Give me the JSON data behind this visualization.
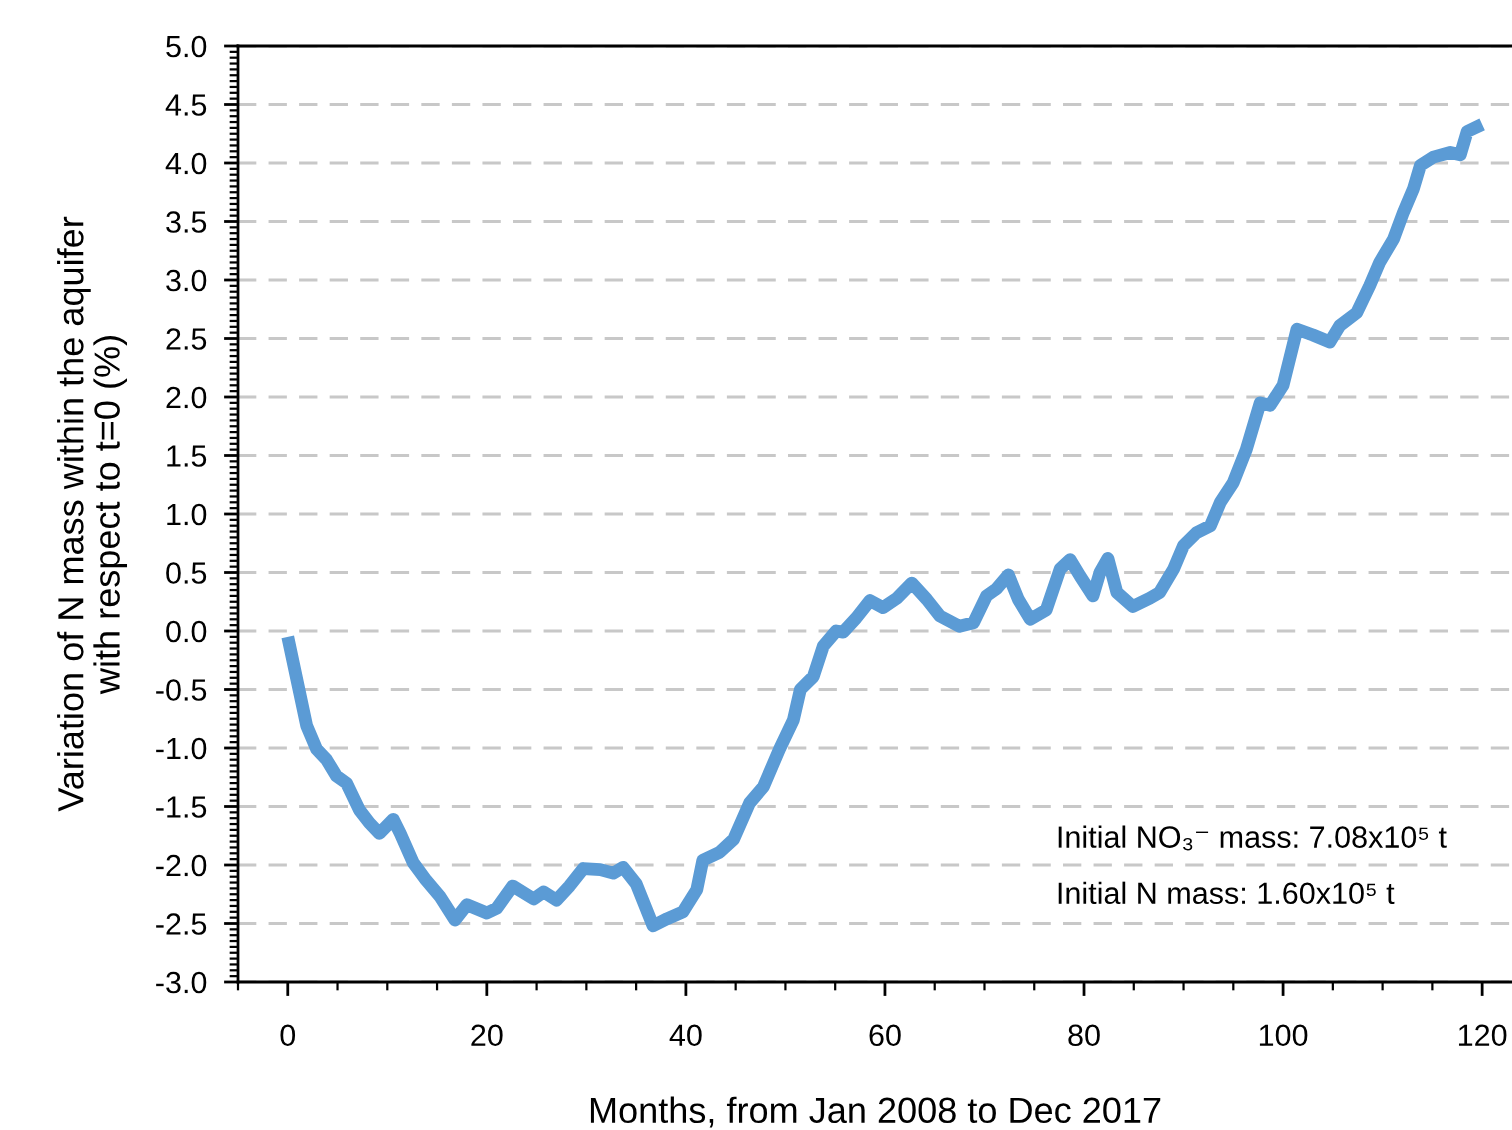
{
  "chart_data": {
    "type": "line",
    "xlabel": "Months, from Jan 2008 to Dec 2017",
    "ylabel": "Variation of N mass within the aquifer\nwith respect to t=0 (%)",
    "annotations": [
      "Initial NO₃⁻ mass: 7.08x10⁵ t",
      "Initial N mass: 1.60x10⁵ t"
    ],
    "x": [
      0,
      1.2,
      1.9,
      2.9,
      3.9,
      4.9,
      5.9,
      7.2,
      8.2,
      9.2,
      10.6,
      11.3,
      12.6,
      13.9,
      15.3,
      16.8,
      18.0,
      20.0,
      21.0,
      22.6,
      24.7,
      25.7,
      27.0,
      28.3,
      29.7,
      31.4,
      32.7,
      33.7,
      35.0,
      36.7,
      38.1,
      39.7,
      41.1,
      41.7,
      43.4,
      44.8,
      46.4,
      47.8,
      49.4,
      50.8,
      51.5,
      52.8,
      53.8,
      55.1,
      55.8,
      57.1,
      58.5,
      59.8,
      61.2,
      62.7,
      64.2,
      65.5,
      67.5,
      68.9,
      70.2,
      71.2,
      72.4,
      73.4,
      74.6,
      76.2,
      77.6,
      78.6,
      79.6,
      80.9,
      81.6,
      82.4,
      83.3,
      84.9,
      86.6,
      87.6,
      89.0,
      90.0,
      91.3,
      92.7,
      93.7,
      95.0,
      96.3,
      97.7,
      98.7,
      100.0,
      101.4,
      103.0,
      104.7,
      105.7,
      107.4,
      108.7,
      109.7,
      111.1,
      112.1,
      113.1,
      113.8,
      115.1,
      116.8,
      117.8,
      118.5,
      120.0
    ],
    "series": [
      {
        "color": "#5b9bd5",
        "values": [
          -0.05,
          -0.53,
          -0.81,
          -1.01,
          -1.1,
          -1.24,
          -1.3,
          -1.53,
          -1.64,
          -1.73,
          -1.61,
          -1.73,
          -1.98,
          -2.13,
          -2.27,
          -2.47,
          -2.34,
          -2.41,
          -2.37,
          -2.18,
          -2.29,
          -2.23,
          -2.3,
          -2.18,
          -2.03,
          -2.04,
          -2.07,
          -2.02,
          -2.16,
          -2.52,
          -2.46,
          -2.4,
          -2.21,
          -1.96,
          -1.89,
          -1.78,
          -1.47,
          -1.33,
          -1.01,
          -0.76,
          -0.5,
          -0.39,
          -0.13,
          0.0,
          -0.01,
          0.11,
          0.26,
          0.2,
          0.28,
          0.41,
          0.27,
          0.13,
          0.04,
          0.07,
          0.3,
          0.36,
          0.48,
          0.27,
          0.1,
          0.18,
          0.53,
          0.61,
          0.47,
          0.3,
          0.5,
          0.62,
          0.33,
          0.21,
          0.28,
          0.33,
          0.53,
          0.73,
          0.84,
          0.9,
          1.1,
          1.27,
          1.55,
          1.95,
          1.93,
          2.1,
          2.58,
          2.53,
          2.47,
          2.61,
          2.72,
          2.95,
          3.15,
          3.35,
          3.58,
          3.78,
          3.98,
          4.05,
          4.09,
          4.07,
          4.27,
          4.33
        ]
      }
    ],
    "xlim": [
      -5,
      123
    ],
    "ylim": [
      -3,
      5
    ],
    "xticks": [
      0,
      20,
      40,
      60,
      80,
      100,
      120
    ],
    "yticks": [
      {
        "value": -3,
        "label": "-3.0"
      },
      {
        "value": -2.5,
        "label": "-2.5"
      },
      {
        "value": -2,
        "label": "-2.0"
      },
      {
        "value": -1.5,
        "label": "-1.5"
      },
      {
        "value": -1,
        "label": "-1.0"
      },
      {
        "value": -0.5,
        "label": "-0.5"
      },
      {
        "value": 0,
        "label": "0.0"
      },
      {
        "value": 0.5,
        "label": "0.5"
      },
      {
        "value": 1,
        "label": "1.0"
      },
      {
        "value": 1.5,
        "label": "1.5"
      },
      {
        "value": 2,
        "label": "2.0"
      },
      {
        "value": 2.5,
        "label": "2.5"
      },
      {
        "value": 3,
        "label": "3.0"
      },
      {
        "value": 3.5,
        "label": "3.5"
      },
      {
        "value": 4,
        "label": "4.0"
      },
      {
        "value": 4.5,
        "label": "4.5"
      },
      {
        "value": 5,
        "label": "5.0"
      }
    ],
    "grid": "y",
    "line_style": "solid"
  }
}
